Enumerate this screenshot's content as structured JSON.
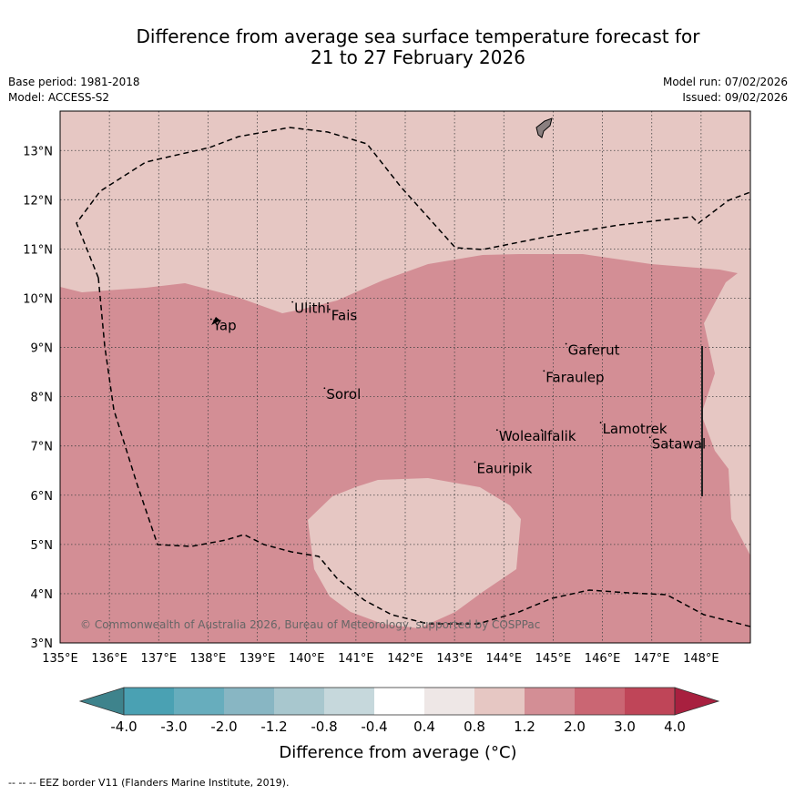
{
  "title": {
    "line1": "Difference from average sea surface temperature forecast for",
    "line2": "21 to 27 February 2026"
  },
  "meta": {
    "base_period": "Base period: 1981-2018",
    "model": "Model: ACCESS-S2",
    "model_run": "Model run: 07/02/2026",
    "issued": "Issued: 09/02/2026"
  },
  "map": {
    "lon_range": [
      135,
      149
    ],
    "lat_range": [
      3,
      13.8
    ],
    "lon_ticks": [
      "135°E",
      "136°E",
      "137°E",
      "138°E",
      "139°E",
      "140°E",
      "141°E",
      "142°E",
      "143°E",
      "144°E",
      "145°E",
      "146°E",
      "147°E",
      "148°E"
    ],
    "lat_ticks": [
      "3°N",
      "4°N",
      "5°N",
      "6°N",
      "7°N",
      "8°N",
      "9°N",
      "10°N",
      "11°N",
      "12°N",
      "13°N"
    ],
    "places": [
      {
        "name": "Ulithi",
        "lon": 139.75,
        "lat": 9.85
      },
      {
        "name": "Fais",
        "lon": 140.5,
        "lat": 9.7
      },
      {
        "name": "Yap",
        "lon": 138.1,
        "lat": 9.5
      },
      {
        "name": "Gaferut",
        "lon": 145.3,
        "lat": 9.0
      },
      {
        "name": "Faraulep",
        "lon": 144.85,
        "lat": 8.45
      },
      {
        "name": "Sorol",
        "lon": 140.4,
        "lat": 8.1
      },
      {
        "name": "Lamotrek",
        "lon": 146.0,
        "lat": 7.4
      },
      {
        "name": "Woleai",
        "lon": 143.9,
        "lat": 7.25
      },
      {
        "name": "Ifalik",
        "lon": 144.8,
        "lat": 7.25
      },
      {
        "name": "Satawal",
        "lon": 147.0,
        "lat": 7.1
      },
      {
        "name": "Eauripik",
        "lon": 143.45,
        "lat": 6.6
      }
    ],
    "copyright": "© Commonwealth of Australia 2026, Bureau of Meteorology, supported by COSPPac",
    "colors": {
      "light_anomaly": "#e6c7c3",
      "mid_anomaly": "#d38e95",
      "land": "#8a7f7f"
    }
  },
  "colorbar": {
    "labels": [
      "-4.0",
      "-3.0",
      "-2.0",
      "-1.2",
      "-0.8",
      "-0.4",
      "0.4",
      "0.8",
      "1.2",
      "2.0",
      "3.0",
      "4.0"
    ],
    "colors": [
      "#3e838c",
      "#4aa1b3",
      "#67adbd",
      "#88b6c3",
      "#a8c7ce",
      "#c6d8dc",
      "#ffffff",
      "#eee7e6",
      "#e6c7c3",
      "#d38e95",
      "#ca6673",
      "#bf4558",
      "#a8203f"
    ],
    "label": "Difference from average (°C)"
  },
  "footnote": "-- -- -- EEZ border V11 (Flanders Marine Institute, 2019)."
}
